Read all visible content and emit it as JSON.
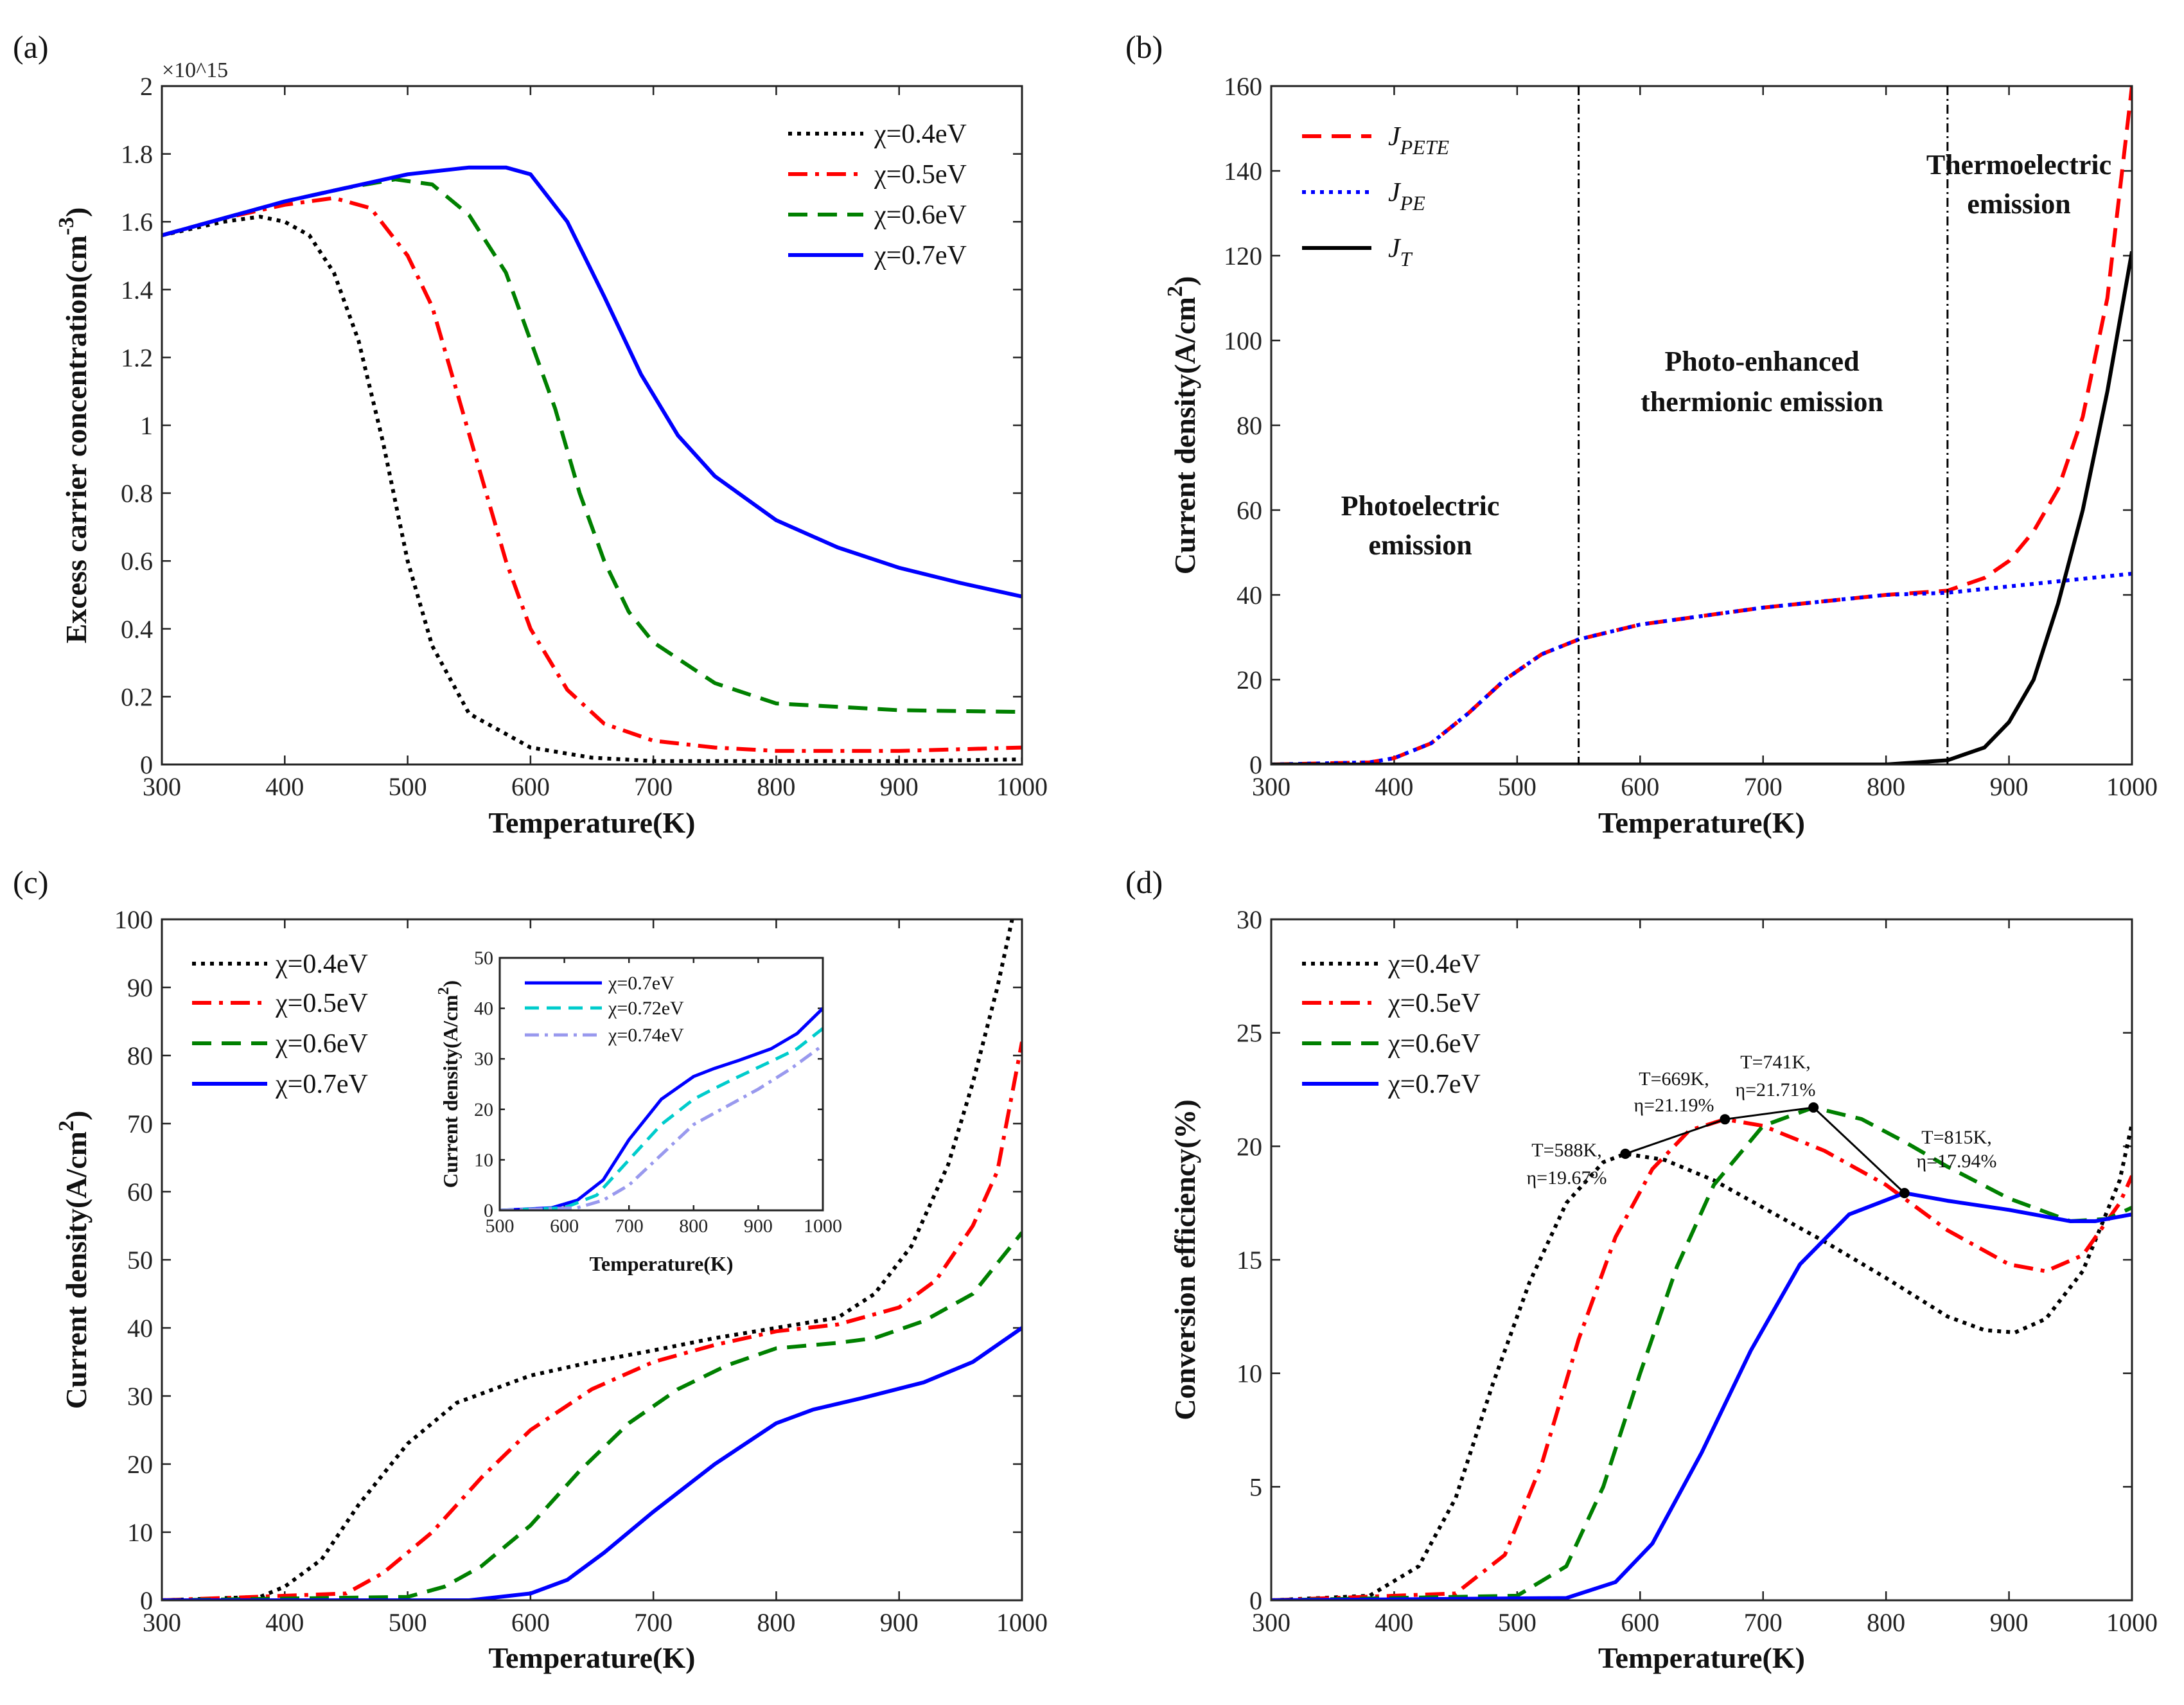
{
  "chart_data": [
    {
      "id": "a",
      "panel_label": "(a)",
      "type": "line",
      "xlabel": "Temperature(K)",
      "ylabel": {
        "main": "Excess carrier concentration(cm",
        "sup": "-3",
        "end": ")"
      },
      "y_multiplier": "×10^15",
      "y_multiplier_text": {
        "base": "×10",
        "exp": "15"
      },
      "xlim": [
        300,
        1000
      ],
      "ylim": [
        0,
        2
      ],
      "xticks": [
        300,
        400,
        500,
        600,
        700,
        800,
        900,
        1000
      ],
      "yticks": [
        0,
        0.2,
        0.4,
        0.6,
        0.8,
        1,
        1.2,
        1.4,
        1.6,
        1.8,
        2
      ],
      "legend_position": "top-right",
      "series": [
        {
          "name": "χ=0.4eV",
          "color": "#000000",
          "style": "dotted",
          "x": [
            300,
            350,
            380,
            400,
            420,
            440,
            460,
            480,
            500,
            520,
            550,
            600,
            650,
            700,
            800,
            900,
            1000
          ],
          "y": [
            1.56,
            1.6,
            1.615,
            1.6,
            1.56,
            1.45,
            1.25,
            0.95,
            0.6,
            0.35,
            0.15,
            0.05,
            0.02,
            0.01,
            0.01,
            0.01,
            0.015
          ]
        },
        {
          "name": "χ=0.5eV",
          "color": "#ff0000",
          "style": "dashdot",
          "x": [
            300,
            350,
            400,
            440,
            470,
            500,
            520,
            540,
            560,
            580,
            600,
            630,
            660,
            700,
            750,
            800,
            900,
            1000
          ],
          "y": [
            1.56,
            1.61,
            1.65,
            1.67,
            1.64,
            1.5,
            1.35,
            1.1,
            0.85,
            0.6,
            0.4,
            0.22,
            0.12,
            0.07,
            0.05,
            0.04,
            0.04,
            0.05
          ]
        },
        {
          "name": "χ=0.6eV",
          "color": "#008000",
          "style": "dashed",
          "x": [
            300,
            400,
            450,
            490,
            520,
            550,
            580,
            600,
            620,
            640,
            660,
            680,
            700,
            750,
            800,
            900,
            1000
          ],
          "y": [
            1.56,
            1.66,
            1.7,
            1.725,
            1.71,
            1.62,
            1.45,
            1.25,
            1.05,
            0.8,
            0.6,
            0.45,
            0.36,
            0.24,
            0.18,
            0.16,
            0.155
          ]
        },
        {
          "name": "χ=0.7eV",
          "color": "#0000ff",
          "style": "solid",
          "x": [
            300,
            400,
            450,
            500,
            550,
            580,
            600,
            630,
            660,
            690,
            720,
            750,
            800,
            850,
            900,
            950,
            1000
          ],
          "y": [
            1.56,
            1.66,
            1.7,
            1.74,
            1.76,
            1.76,
            1.74,
            1.6,
            1.38,
            1.15,
            0.97,
            0.85,
            0.72,
            0.64,
            0.58,
            0.535,
            0.495
          ]
        }
      ]
    },
    {
      "id": "b",
      "panel_label": "(b)",
      "type": "line",
      "xlabel": "Temperature(K)",
      "ylabel": {
        "main": "Current density(A/cm",
        "sup": "2",
        "end": ")"
      },
      "xlim": [
        300,
        1000
      ],
      "ylim": [
        0,
        160
      ],
      "xticks": [
        300,
        400,
        500,
        600,
        700,
        800,
        900,
        1000
      ],
      "yticks": [
        0,
        20,
        40,
        60,
        80,
        100,
        120,
        140,
        160
      ],
      "legend_position": "top-left",
      "vlines": [
        550,
        850
      ],
      "annotations": [
        {
          "lines": [
            "Photoelectric",
            "emission"
          ]
        },
        {
          "lines": [
            "Photo-enhanced",
            "thermionic emission"
          ]
        },
        {
          "lines": [
            "Thermoelectric",
            "emission"
          ]
        }
      ],
      "series": [
        {
          "name": "J_PETE",
          "main": "J",
          "sub": "PETE",
          "color": "#ff0000",
          "style": "dashed",
          "x": [
            300,
            380,
            400,
            430,
            460,
            490,
            520,
            550,
            600,
            650,
            700,
            750,
            800,
            850,
            880,
            900,
            920,
            940,
            960,
            980,
            1000
          ],
          "y": [
            0,
            0.5,
            1.5,
            5,
            12,
            20,
            26,
            29.5,
            33,
            35,
            37,
            38.5,
            40,
            41,
            44,
            48,
            55,
            65,
            82,
            110,
            160
          ]
        },
        {
          "name": "J_PE",
          "main": "J",
          "sub": "PE",
          "color": "#0000ff",
          "style": "dotted",
          "x": [
            300,
            380,
            400,
            430,
            460,
            490,
            520,
            550,
            600,
            650,
            700,
            750,
            800,
            850,
            900,
            950,
            1000
          ],
          "y": [
            0,
            0.5,
            1.5,
            5,
            12,
            20,
            26,
            29.5,
            33,
            35,
            37,
            38.5,
            40,
            40.5,
            42,
            43.5,
            45
          ]
        },
        {
          "name": "J_T",
          "main": "J",
          "sub": "T",
          "color": "#000000",
          "style": "solid",
          "x": [
            300,
            800,
            850,
            880,
            900,
            920,
            940,
            960,
            980,
            1000
          ],
          "y": [
            0,
            0,
            1,
            4,
            10,
            20,
            38,
            60,
            88,
            121
          ]
        }
      ]
    },
    {
      "id": "c",
      "panel_label": "(c)",
      "type": "line",
      "xlabel": "Temperature(K)",
      "ylabel": {
        "main": "Current density(A/cm",
        "sup": "2",
        "end": ")"
      },
      "xlim": [
        300,
        1000
      ],
      "ylim": [
        0,
        100
      ],
      "xticks": [
        300,
        400,
        500,
        600,
        700,
        800,
        900,
        1000
      ],
      "yticks": [
        0,
        10,
        20,
        30,
        40,
        50,
        60,
        70,
        80,
        90,
        100
      ],
      "legend_position": "top-left",
      "series": [
        {
          "name": "χ=0.4eV",
          "color": "#000000",
          "style": "dotted",
          "x": [
            300,
            380,
            400,
            430,
            460,
            500,
            540,
            600,
            650,
            700,
            750,
            800,
            850,
            880,
            910,
            940,
            960,
            980,
            992,
            1000
          ],
          "y": [
            0,
            0.5,
            2,
            6,
            14,
            23,
            29,
            33,
            35,
            36.7,
            38.5,
            40,
            41.5,
            45,
            52,
            64,
            76,
            90,
            100,
            112
          ]
        },
        {
          "name": "χ=0.5eV",
          "color": "#ff0000",
          "style": "dashdot",
          "x": [
            300,
            450,
            480,
            520,
            560,
            600,
            650,
            700,
            750,
            800,
            850,
            900,
            930,
            960,
            980,
            1000
          ],
          "y": [
            0,
            1,
            4,
            10,
            18,
            25,
            31,
            35,
            37.5,
            39.5,
            40.5,
            43,
            47,
            55,
            63,
            82
          ]
        },
        {
          "name": "χ=0.6eV",
          "color": "#008000",
          "style": "dashed",
          "x": [
            300,
            500,
            530,
            560,
            600,
            640,
            680,
            720,
            760,
            800,
            850,
            880,
            920,
            960,
            1000
          ],
          "y": [
            0,
            0.5,
            2,
            5,
            11,
            19,
            26,
            31,
            34.5,
            37,
            37.8,
            38.5,
            41,
            45,
            54
          ]
        },
        {
          "name": "χ=0.7eV",
          "color": "#0000ff",
          "style": "solid",
          "x": [
            300,
            550,
            600,
            630,
            660,
            700,
            750,
            800,
            830,
            870,
            920,
            960,
            1000
          ],
          "y": [
            0,
            0,
            1,
            3,
            7,
            13,
            20,
            26,
            28,
            29.7,
            32,
            35,
            40
          ]
        }
      ],
      "inset": {
        "type": "line",
        "xlabel": "Temperature(K)",
        "ylabel": {
          "main": "Current density(A/cm",
          "sup": "2",
          "end": ")"
        },
        "xlim": [
          500,
          1000
        ],
        "ylim": [
          0,
          50
        ],
        "xticks": [
          500,
          600,
          700,
          800,
          900,
          1000
        ],
        "yticks": [
          0,
          10,
          20,
          30,
          40,
          50
        ],
        "legend_position": "top-left",
        "series": [
          {
            "name": "χ=0.7eV",
            "color": "#0000ff",
            "style": "solid",
            "x": [
              500,
              580,
              620,
              660,
              700,
              750,
              800,
              830,
              870,
              920,
              960,
              1000
            ],
            "y": [
              0,
              0.5,
              2,
              6,
              14,
              22,
              26.5,
              28,
              29.7,
              32,
              35,
              40
            ]
          },
          {
            "name": "χ=0.72eV",
            "color": "#00cccc",
            "style": "dashed",
            "x": [
              500,
              600,
              650,
              700,
              750,
              800,
              830,
              870,
              920,
              960,
              1000
            ],
            "y": [
              0,
              0.5,
              3,
              10,
              17,
              22,
              24,
              26.5,
              29.5,
              32,
              36
            ]
          },
          {
            "name": "χ=0.74eV",
            "color": "#9999ee",
            "style": "dashdot",
            "x": [
              500,
              620,
              660,
              700,
              750,
              800,
              850,
              900,
              950,
              1000
            ],
            "y": [
              0,
              0.5,
              2,
              5,
              11,
              17,
              20.5,
              24,
              28,
              32.7
            ]
          }
        ]
      }
    },
    {
      "id": "d",
      "panel_label": "(d)",
      "type": "line",
      "xlabel": "Temperature(K)",
      "ylabel": {
        "main": "Conversion efficiency(%)",
        "sup": "",
        "end": ""
      },
      "xlim": [
        300,
        1000
      ],
      "ylim": [
        0,
        30
      ],
      "xticks": [
        300,
        400,
        500,
        600,
        700,
        800,
        900,
        1000
      ],
      "yticks": [
        0,
        5,
        10,
        15,
        20,
        25,
        30
      ],
      "legend_position": "top-left",
      "series": [
        {
          "name": "χ=0.4eV",
          "color": "#000000",
          "style": "dotted",
          "x": [
            300,
            380,
            420,
            450,
            480,
            510,
            540,
            570,
            588,
            620,
            660,
            700,
            750,
            800,
            850,
            880,
            905,
            930,
            960,
            990,
            1000
          ],
          "y": [
            0,
            0.2,
            1.5,
            4.5,
            9.5,
            14,
            17.5,
            19.3,
            19.67,
            19.4,
            18.5,
            17.3,
            15.8,
            14.2,
            12.5,
            11.9,
            11.8,
            12.4,
            14.5,
            18.5,
            21
          ]
        },
        {
          "name": "χ=0.5eV",
          "color": "#ff0000",
          "style": "dashdot",
          "x": [
            300,
            450,
            490,
            520,
            550,
            580,
            610,
            640,
            669,
            700,
            750,
            800,
            850,
            900,
            930,
            960,
            990,
            1000
          ],
          "y": [
            0,
            0.3,
            2,
            6,
            11.5,
            16,
            19,
            20.7,
            21.19,
            20.9,
            19.8,
            18.3,
            16.3,
            14.8,
            14.5,
            15.2,
            17.5,
            18.7
          ]
        },
        {
          "name": "χ=0.6eV",
          "color": "#008000",
          "style": "dashed",
          "x": [
            300,
            500,
            540,
            570,
            600,
            630,
            660,
            700,
            741,
            780,
            815,
            850,
            900,
            950,
            980,
            1000
          ],
          "y": [
            0,
            0.2,
            1.5,
            5,
            10,
            14.7,
            18.3,
            20.9,
            21.71,
            21.2,
            20.2,
            19.1,
            17.7,
            16.7,
            16.8,
            17.3
          ]
        },
        {
          "name": "χ=0.7eV",
          "color": "#0000ff",
          "style": "solid",
          "x": [
            300,
            540,
            580,
            610,
            650,
            690,
            730,
            770,
            815,
            850,
            900,
            950,
            970,
            1000
          ],
          "y": [
            0,
            0.1,
            0.8,
            2.5,
            6.5,
            11,
            14.8,
            17,
            17.94,
            17.6,
            17.2,
            16.7,
            16.7,
            17
          ]
        }
      ],
      "peaks": [
        {
          "x": 588,
          "y": 19.67,
          "label1": "T=588K,",
          "label2": "η=19.67%"
        },
        {
          "x": 669,
          "y": 21.19,
          "label1": "T=669K,",
          "label2": "η=21.19%"
        },
        {
          "x": 741,
          "y": 21.71,
          "label1": "T=741K,",
          "label2": "η=21.71%"
        },
        {
          "x": 815,
          "y": 17.94,
          "label1": "T=815K,",
          "label2": "η=17.94%"
        }
      ]
    }
  ]
}
